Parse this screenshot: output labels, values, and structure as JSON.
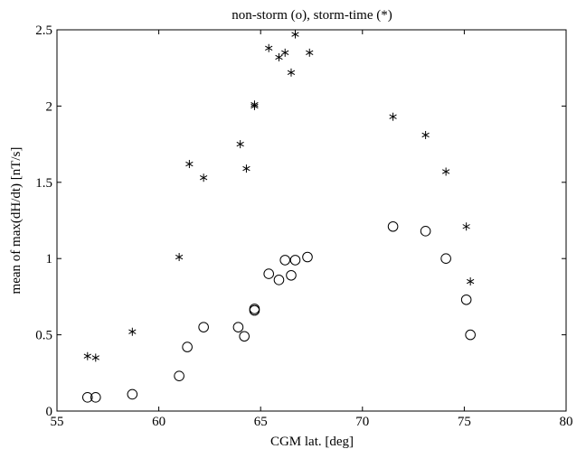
{
  "chart_data": {
    "type": "scatter",
    "title": "non-storm (o), storm-time (*)",
    "xlabel": "CGM lat. [deg]",
    "ylabel": "mean of max(dH/dt) [nT/s]",
    "xlim": [
      55,
      80
    ],
    "ylim": [
      0,
      2.5
    ],
    "xticks": [
      55,
      60,
      65,
      70,
      75,
      80
    ],
    "xtick_labels": [
      "55",
      "60",
      "65",
      "70",
      "75",
      "80"
    ],
    "yticks": [
      0,
      0.5,
      1,
      1.5,
      2,
      2.5
    ],
    "ytick_labels": [
      "0",
      "0.5",
      "1",
      "1.5",
      "2",
      "2.5"
    ],
    "grid": false,
    "series": [
      {
        "marker": "circle",
        "x": [
          56.5,
          56.9,
          58.7,
          61.0,
          61.4,
          62.2,
          63.9,
          64.2,
          64.7,
          64.7,
          65.4,
          65.9,
          66.2,
          66.5,
          66.7,
          67.3,
          71.5,
          73.1,
          74.1,
          75.1,
          75.3
        ],
        "y": [
          0.09,
          0.09,
          0.11,
          0.23,
          0.42,
          0.55,
          0.55,
          0.49,
          0.66,
          0.67,
          0.9,
          0.86,
          0.99,
          0.89,
          0.99,
          1.01,
          1.21,
          1.18,
          1.0,
          0.73,
          0.5
        ]
      },
      {
        "marker": "asterisk",
        "x": [
          56.5,
          56.9,
          58.7,
          61.0,
          61.5,
          62.2,
          64.0,
          64.3,
          64.7,
          64.7,
          65.4,
          65.9,
          66.2,
          66.5,
          66.7,
          67.4,
          71.5,
          73.1,
          74.1,
          75.1,
          75.3
        ],
        "y": [
          0.36,
          0.35,
          0.52,
          1.01,
          1.62,
          1.53,
          1.75,
          1.59,
          2.0,
          2.01,
          2.38,
          2.32,
          2.35,
          2.22,
          2.47,
          2.35,
          1.93,
          1.81,
          1.57,
          1.21,
          0.85
        ]
      }
    ]
  }
}
